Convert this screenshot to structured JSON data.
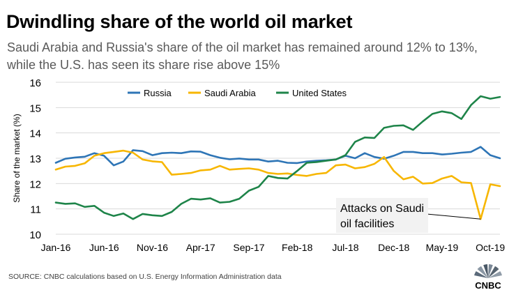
{
  "title": "Dwindling share of the world oil market",
  "subtitle": "Saudi Arabia and Russia's share of the oil market has remained around 12% to 13%, while the U.S. has seen its share rise above 15%",
  "source": "SOURCE: CNBC calculations based on U.S. Energy Information Administration data",
  "logo_text": "CNBC",
  "chart_data": {
    "type": "line",
    "ylabel": "Share of the market (%)",
    "xlabel": "",
    "ylim": [
      10,
      16
    ],
    "yticks": [
      10,
      11,
      12,
      13,
      14,
      15,
      16
    ],
    "grid": true,
    "legend_position": "top",
    "x_tick_labels": [
      "Jan-16",
      "Jun-16",
      "Nov-16",
      "Apr-17",
      "Sep-17",
      "Feb-18",
      "Jul-18",
      "Dec-18",
      "May-19",
      "Oct-19"
    ],
    "x_tick_month_index": [
      0,
      5,
      10,
      15,
      20,
      25,
      30,
      35,
      40,
      45
    ],
    "series": [
      {
        "name": "Russia",
        "color": "#2e75b6",
        "values": [
          12.82,
          12.98,
          13.03,
          13.06,
          13.2,
          13.1,
          12.72,
          12.87,
          13.32,
          13.28,
          13.12,
          13.2,
          13.22,
          13.2,
          13.27,
          13.26,
          13.12,
          13.02,
          12.96,
          12.99,
          12.95,
          12.95,
          12.87,
          12.9,
          12.82,
          12.81,
          12.87,
          12.9,
          12.92,
          12.95,
          13.1,
          13.0,
          13.2,
          13.05,
          12.98,
          13.1,
          13.25,
          13.25,
          13.2,
          13.2,
          13.15,
          13.18,
          13.22,
          13.25,
          13.45,
          13.12,
          13.0
        ]
      },
      {
        "name": "Saudi Arabia",
        "color": "#f7b600",
        "values": [
          12.55,
          12.67,
          12.7,
          12.8,
          13.1,
          13.2,
          13.25,
          13.3,
          13.22,
          12.95,
          12.88,
          12.85,
          12.35,
          12.38,
          12.42,
          12.52,
          12.55,
          12.7,
          12.55,
          12.58,
          12.6,
          12.55,
          12.42,
          12.38,
          12.4,
          12.34,
          12.3,
          12.38,
          12.42,
          12.72,
          12.75,
          12.6,
          12.65,
          12.78,
          13.05,
          12.5,
          12.17,
          12.27,
          12.0,
          12.02,
          12.2,
          12.3,
          12.05,
          12.02,
          10.6,
          11.97,
          11.9
        ]
      },
      {
        "name": "United States",
        "color": "#1e8449",
        "values": [
          11.25,
          11.2,
          11.22,
          11.08,
          11.12,
          10.85,
          10.72,
          10.82,
          10.6,
          10.8,
          10.75,
          10.72,
          10.88,
          11.2,
          11.4,
          11.37,
          11.42,
          11.25,
          11.28,
          11.4,
          11.72,
          11.87,
          12.3,
          12.22,
          12.2,
          12.5,
          12.82,
          12.85,
          12.9,
          12.95,
          13.12,
          13.65,
          13.82,
          13.8,
          14.2,
          14.28,
          14.3,
          14.12,
          14.45,
          14.75,
          14.85,
          14.78,
          14.55,
          15.1,
          15.45,
          15.35,
          15.42
        ]
      }
    ],
    "annotation": {
      "text_lines": [
        "Attacks on Saudi",
        "oil facilities"
      ],
      "points_to_month_index": 44,
      "points_to_value": 10.6
    }
  }
}
